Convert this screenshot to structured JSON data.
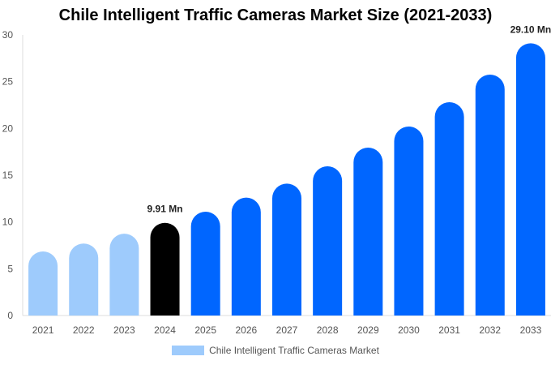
{
  "chart_data": {
    "type": "bar",
    "title": "Chile Intelligent Traffic Cameras Market Size (2021-2033)",
    "categories": [
      "2021",
      "2022",
      "2023",
      "2024",
      "2025",
      "2026",
      "2027",
      "2028",
      "2029",
      "2030",
      "2031",
      "2032",
      "2033"
    ],
    "series": [
      {
        "name": "Chile Intelligent Traffic Cameras Market",
        "values": [
          6.85,
          7.7,
          8.75,
          9.91,
          11.1,
          12.6,
          14.1,
          15.95,
          17.95,
          20.2,
          22.8,
          25.75,
          29.1
        ]
      }
    ],
    "bar_colors": [
      "#9ecbfc",
      "#9ecbfc",
      "#9ecbfc",
      "#000000",
      "#0066ff",
      "#0066ff",
      "#0066ff",
      "#0066ff",
      "#0066ff",
      "#0066ff",
      "#0066ff",
      "#0066ff",
      "#0066ff"
    ],
    "data_labels": [
      {
        "index": 3,
        "text": "9.91 Mn"
      },
      {
        "index": 12,
        "text": "29.10 Mn"
      }
    ],
    "ylim": [
      0,
      30
    ],
    "yticks": [
      0,
      5,
      10,
      15,
      20,
      25,
      30
    ],
    "grid": false,
    "legend": "bottom",
    "xlabel": "",
    "ylabel": ""
  }
}
